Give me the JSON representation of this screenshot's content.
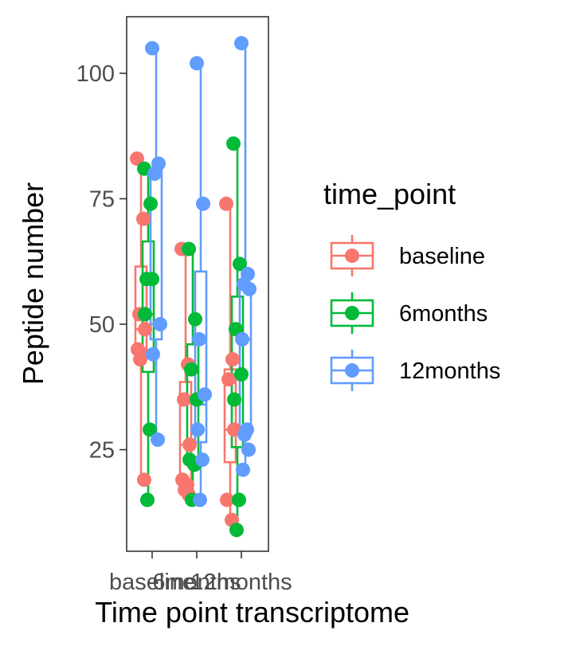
{
  "chart_data": {
    "type": "boxplot",
    "xlabel": "Time point transcriptome",
    "ylabel": "Peptide number",
    "categories": [
      "baseline",
      "6months",
      "12months"
    ],
    "yticks": [
      25,
      50,
      75,
      100
    ],
    "ylim": [
      8,
      111
    ],
    "grid": false,
    "legend": {
      "title": "time_point",
      "placement": "right",
      "entries": [
        "baseline",
        "6months",
        "12months"
      ]
    },
    "series": [
      {
        "name": "baseline",
        "color": "#F8766D",
        "boxes": [
          {
            "category": "baseline",
            "min": 19,
            "q1": 44,
            "median": 49,
            "q3": 61.5,
            "max": 83
          },
          {
            "category": "6months",
            "min": 16,
            "q1": 19,
            "median": 26,
            "q3": 38.5,
            "max": 65
          },
          {
            "category": "12months",
            "min": 11,
            "q1": 22.5,
            "median": 29,
            "q3": 41,
            "max": 74
          }
        ],
        "points": [
          {
            "category": "baseline",
            "y": [
              83,
              71,
              52,
              49,
              45,
              44,
              43,
              19
            ]
          },
          {
            "category": "6months",
            "y": [
              65,
              42,
              35,
              26,
              19,
              18,
              17,
              16
            ]
          },
          {
            "category": "12months",
            "y": [
              74,
              43,
              39,
              29,
              15,
              11
            ]
          }
        ]
      },
      {
        "name": "6months",
        "color": "#00BA38",
        "boxes": [
          {
            "category": "baseline",
            "min": 15,
            "q1": 40.5,
            "median": 52,
            "q3": 66.5,
            "max": 81
          },
          {
            "category": "6months",
            "min": 15,
            "q1": 22.5,
            "median": 35,
            "q3": 46,
            "max": 65
          },
          {
            "category": "12months",
            "min": 9,
            "q1": 25.5,
            "median": 40,
            "q3": 55.5,
            "max": 86
          }
        ],
        "points": [
          {
            "category": "baseline",
            "y": [
              81,
              74,
              59,
              59,
              52,
              29,
              15
            ]
          },
          {
            "category": "6months",
            "y": [
              65,
              51,
              41,
              35,
              23,
              22,
              15
            ]
          },
          {
            "category": "12months",
            "y": [
              86,
              62,
              49,
              40,
              35,
              15,
              9
            ]
          }
        ]
      },
      {
        "name": "12months",
        "color": "#619CFF",
        "boxes": [
          {
            "category": "baseline",
            "min": 27,
            "q1": 47,
            "median": 50,
            "q3": 81,
            "max": 105
          },
          {
            "category": "6months",
            "min": 15,
            "q1": 26.5,
            "median": 34,
            "q3": 60.5,
            "max": 102
          },
          {
            "category": "12months",
            "min": 21,
            "q1": 28,
            "median": 47,
            "q3": 57.5,
            "max": 106
          }
        ],
        "points": [
          {
            "category": "baseline",
            "y": [
              105,
              82,
              80,
              50,
              44,
              27
            ]
          },
          {
            "category": "6months",
            "y": [
              102,
              74,
              47,
              36,
              29,
              23,
              15
            ]
          },
          {
            "category": "12months",
            "y": [
              106,
              60,
              58,
              57,
              47,
              29,
              28,
              25,
              21
            ]
          }
        ]
      }
    ]
  }
}
